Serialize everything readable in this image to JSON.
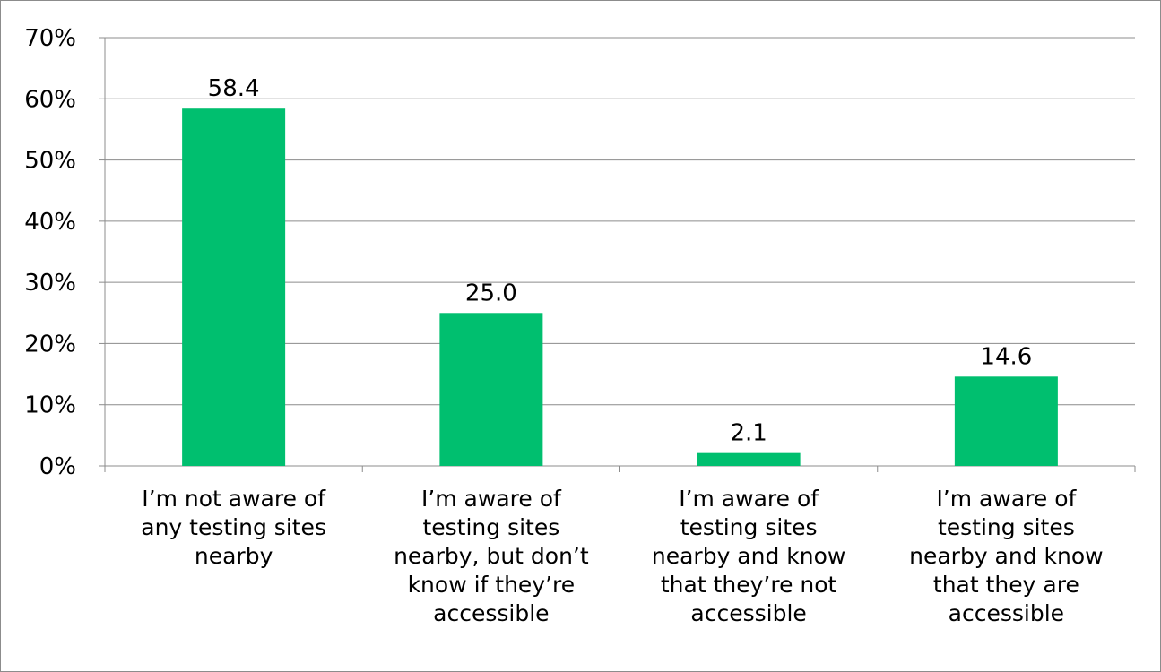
{
  "chart_data": {
    "type": "bar",
    "title": "",
    "xlabel": "",
    "ylabel": "",
    "ylim": [
      0,
      70
    ],
    "y_ticks": [
      "0%",
      "10%",
      "20%",
      "30%",
      "40%",
      "50%",
      "60%",
      "70%"
    ],
    "grid": true,
    "legend": "none",
    "bar_color": "#00BF6F",
    "categories": [
      [
        "I’m not aware of",
        "any testing sites",
        "nearby"
      ],
      [
        "I’m aware of",
        "testing sites",
        "nearby, but don’t",
        "know if they’re",
        "accessible"
      ],
      [
        "I’m aware of",
        "testing sites",
        "nearby and know",
        "that they’re not",
        "accessible"
      ],
      [
        "I’m aware of",
        "testing sites",
        "nearby and know",
        "that they are",
        "accessible"
      ]
    ],
    "values": [
      58.4,
      25.0,
      2.1,
      14.6
    ],
    "data_labels": [
      "58.4",
      "25.0",
      "2.1",
      "14.6"
    ]
  }
}
